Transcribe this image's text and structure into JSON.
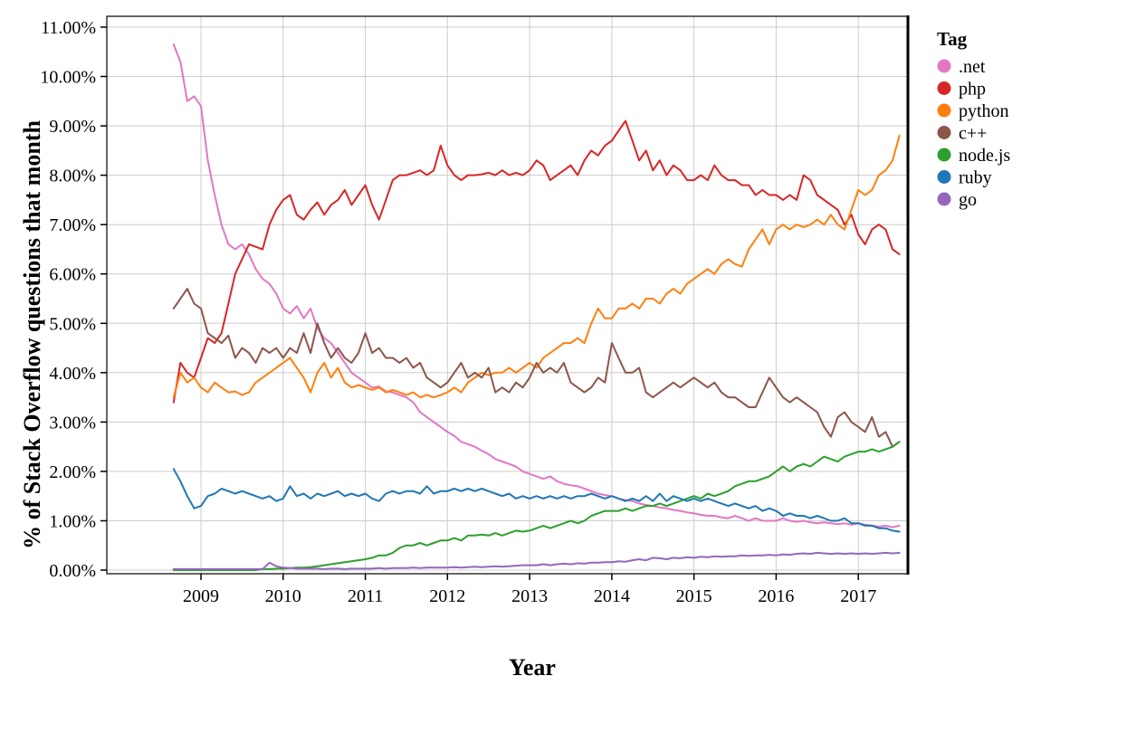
{
  "chart_data": {
    "type": "line",
    "title": "",
    "xlabel": "Year",
    "ylabel": "% of Stack Overflow questions that month",
    "legend_title": "Tag",
    "legend_position": "right",
    "grid": true,
    "grid_color": "#cccccc",
    "axis_color": "#000000",
    "xlim": [
      2007.854,
      2017.604
    ],
    "ylim": [
      -0.073,
      11.22
    ],
    "x_start": 2008.6667,
    "x_step": 0.0833333,
    "x_ticks": [
      {
        "value": 2009,
        "label": "2009"
      },
      {
        "value": 2010,
        "label": "2010"
      },
      {
        "value": 2011,
        "label": "2011"
      },
      {
        "value": 2012,
        "label": "2012"
      },
      {
        "value": 2013,
        "label": "2013"
      },
      {
        "value": 2014,
        "label": "2014"
      },
      {
        "value": 2015,
        "label": "2015"
      },
      {
        "value": 2016,
        "label": "2016"
      },
      {
        "value": 2017,
        "label": "2017"
      }
    ],
    "y_ticks": [
      {
        "value": 0,
        "label": "0.00%"
      },
      {
        "value": 1,
        "label": "1.00%"
      },
      {
        "value": 2,
        "label": "2.00%"
      },
      {
        "value": 3,
        "label": "3.00%"
      },
      {
        "value": 4,
        "label": "4.00%"
      },
      {
        "value": 5,
        "label": "5.00%"
      },
      {
        "value": 6,
        "label": "6.00%"
      },
      {
        "value": 7,
        "label": "7.00%"
      },
      {
        "value": 8,
        "label": "8.00%"
      },
      {
        "value": 9,
        "label": "9.00%"
      },
      {
        "value": 10,
        "label": "10.00%"
      },
      {
        "value": 11,
        "label": "11.00%"
      }
    ],
    "series": [
      {
        "name": ".net",
        "color": "#e377c2",
        "values": [
          10.65,
          10.3,
          9.5,
          9.6,
          9.4,
          8.3,
          7.6,
          7.0,
          6.6,
          6.5,
          6.6,
          6.4,
          6.1,
          5.9,
          5.8,
          5.6,
          5.3,
          5.2,
          5.35,
          5.1,
          5.3,
          4.9,
          4.7,
          4.6,
          4.4,
          4.2,
          4.0,
          3.9,
          3.8,
          3.7,
          3.72,
          3.62,
          3.6,
          3.55,
          3.5,
          3.4,
          3.2,
          3.1,
          3.0,
          2.9,
          2.8,
          2.72,
          2.6,
          2.55,
          2.5,
          2.42,
          2.35,
          2.25,
          2.2,
          2.15,
          2.1,
          2.0,
          1.95,
          1.9,
          1.85,
          1.9,
          1.8,
          1.75,
          1.72,
          1.7,
          1.65,
          1.6,
          1.55,
          1.52,
          1.5,
          1.45,
          1.42,
          1.4,
          1.35,
          1.32,
          1.3,
          1.27,
          1.25,
          1.22,
          1.2,
          1.17,
          1.15,
          1.12,
          1.1,
          1.1,
          1.07,
          1.05,
          1.1,
          1.05,
          1.0,
          1.05,
          1.0,
          1.0,
          1.0,
          1.05,
          1.0,
          0.98,
          1.0,
          0.97,
          0.95,
          0.97,
          0.95,
          0.93,
          0.95,
          0.92,
          0.95,
          0.92,
          0.9,
          0.88,
          0.9,
          0.87,
          0.9
        ]
      },
      {
        "name": "php",
        "color": "#d62728",
        "values": [
          3.4,
          4.2,
          4.0,
          3.9,
          4.3,
          4.7,
          4.6,
          4.8,
          5.4,
          6.0,
          6.3,
          6.6,
          6.55,
          6.5,
          7.0,
          7.3,
          7.5,
          7.6,
          7.2,
          7.1,
          7.3,
          7.45,
          7.2,
          7.4,
          7.5,
          7.7,
          7.4,
          7.6,
          7.8,
          7.4,
          7.1,
          7.5,
          7.9,
          8.0,
          8.0,
          8.05,
          8.1,
          8.0,
          8.1,
          8.6,
          8.2,
          8.0,
          7.9,
          8.0,
          8.0,
          8.02,
          8.05,
          8.0,
          8.1,
          8.0,
          8.05,
          8.0,
          8.1,
          8.3,
          8.2,
          7.9,
          8.0,
          8.1,
          8.2,
          8.0,
          8.3,
          8.5,
          8.4,
          8.6,
          8.7,
          8.9,
          9.1,
          8.7,
          8.3,
          8.5,
          8.1,
          8.3,
          8.0,
          8.2,
          8.1,
          7.9,
          7.9,
          8.0,
          7.9,
          8.2,
          8.0,
          7.9,
          7.9,
          7.8,
          7.8,
          7.6,
          7.7,
          7.6,
          7.6,
          7.5,
          7.6,
          7.5,
          8.0,
          7.9,
          7.6,
          7.5,
          7.4,
          7.3,
          7.0,
          7.2,
          6.8,
          6.6,
          6.9,
          7.0,
          6.9,
          6.5,
          6.4
        ]
      },
      {
        "name": "python",
        "color": "#ff7f0e",
        "values": [
          3.5,
          4.0,
          3.8,
          3.9,
          3.7,
          3.6,
          3.8,
          3.7,
          3.6,
          3.62,
          3.55,
          3.6,
          3.8,
          3.9,
          4.0,
          4.1,
          4.2,
          4.3,
          4.1,
          3.9,
          3.6,
          4.0,
          4.2,
          3.9,
          4.1,
          3.8,
          3.7,
          3.75,
          3.7,
          3.65,
          3.7,
          3.6,
          3.65,
          3.6,
          3.55,
          3.6,
          3.5,
          3.55,
          3.5,
          3.55,
          3.6,
          3.7,
          3.6,
          3.8,
          3.9,
          4.0,
          3.95,
          4.0,
          4.0,
          4.1,
          4.0,
          4.1,
          4.2,
          4.1,
          4.3,
          4.4,
          4.5,
          4.6,
          4.6,
          4.7,
          4.6,
          5.0,
          5.3,
          5.1,
          5.1,
          5.3,
          5.3,
          5.4,
          5.3,
          5.5,
          5.5,
          5.4,
          5.6,
          5.7,
          5.6,
          5.8,
          5.9,
          6.0,
          6.1,
          6.0,
          6.2,
          6.3,
          6.2,
          6.15,
          6.5,
          6.7,
          6.9,
          6.6,
          6.9,
          7.0,
          6.9,
          7.0,
          6.95,
          7.0,
          7.1,
          7.0,
          7.2,
          7.0,
          6.9,
          7.3,
          7.7,
          7.6,
          7.7,
          8.0,
          8.1,
          8.3,
          8.8
        ]
      },
      {
        "name": "c++",
        "color": "#8c564b",
        "values": [
          5.3,
          5.5,
          5.7,
          5.4,
          5.3,
          4.8,
          4.7,
          4.6,
          4.75,
          4.3,
          4.5,
          4.4,
          4.2,
          4.5,
          4.4,
          4.5,
          4.3,
          4.5,
          4.4,
          4.8,
          4.4,
          5.0,
          4.6,
          4.3,
          4.5,
          4.3,
          4.2,
          4.4,
          4.8,
          4.4,
          4.5,
          4.3,
          4.3,
          4.2,
          4.3,
          4.1,
          4.2,
          3.9,
          3.8,
          3.7,
          3.8,
          4.0,
          4.2,
          3.9,
          4.0,
          3.9,
          4.1,
          3.6,
          3.7,
          3.6,
          3.8,
          3.7,
          3.9,
          4.2,
          4.0,
          4.1,
          4.0,
          4.2,
          3.8,
          3.7,
          3.6,
          3.7,
          3.9,
          3.8,
          4.6,
          4.3,
          4.0,
          4.0,
          4.1,
          3.6,
          3.5,
          3.6,
          3.7,
          3.8,
          3.7,
          3.8,
          3.9,
          3.8,
          3.7,
          3.8,
          3.6,
          3.5,
          3.5,
          3.4,
          3.3,
          3.3,
          3.6,
          3.9,
          3.7,
          3.5,
          3.4,
          3.5,
          3.4,
          3.3,
          3.2,
          2.9,
          2.7,
          3.1,
          3.2,
          3.0,
          2.9,
          2.8,
          3.1,
          2.7,
          2.8,
          2.5,
          2.6
        ]
      },
      {
        "name": "node.js",
        "color": "#2ca02c",
        "values": [
          0,
          0,
          0,
          0,
          0,
          0,
          0,
          0,
          0,
          0,
          0,
          0,
          0,
          0.02,
          0.02,
          0.03,
          0.03,
          0.04,
          0.05,
          0.05,
          0.06,
          0.08,
          0.1,
          0.12,
          0.14,
          0.16,
          0.18,
          0.2,
          0.22,
          0.25,
          0.3,
          0.3,
          0.35,
          0.45,
          0.5,
          0.5,
          0.55,
          0.5,
          0.55,
          0.6,
          0.6,
          0.65,
          0.6,
          0.7,
          0.7,
          0.72,
          0.7,
          0.75,
          0.7,
          0.75,
          0.8,
          0.78,
          0.8,
          0.85,
          0.9,
          0.85,
          0.9,
          0.95,
          1.0,
          0.95,
          1.0,
          1.1,
          1.15,
          1.2,
          1.2,
          1.2,
          1.25,
          1.2,
          1.25,
          1.3,
          1.3,
          1.35,
          1.3,
          1.35,
          1.4,
          1.45,
          1.5,
          1.45,
          1.55,
          1.5,
          1.55,
          1.6,
          1.7,
          1.75,
          1.8,
          1.8,
          1.85,
          1.9,
          2.0,
          2.1,
          2.0,
          2.1,
          2.15,
          2.1,
          2.2,
          2.3,
          2.25,
          2.2,
          2.3,
          2.35,
          2.4,
          2.4,
          2.45,
          2.4,
          2.45,
          2.5,
          2.6
        ]
      },
      {
        "name": "ruby",
        "color": "#1f77b4",
        "values": [
          2.05,
          1.8,
          1.5,
          1.25,
          1.3,
          1.5,
          1.55,
          1.65,
          1.6,
          1.55,
          1.6,
          1.55,
          1.5,
          1.45,
          1.5,
          1.4,
          1.45,
          1.7,
          1.5,
          1.55,
          1.45,
          1.55,
          1.5,
          1.55,
          1.6,
          1.5,
          1.55,
          1.5,
          1.55,
          1.45,
          1.4,
          1.55,
          1.6,
          1.55,
          1.6,
          1.6,
          1.55,
          1.7,
          1.55,
          1.6,
          1.6,
          1.65,
          1.6,
          1.65,
          1.6,
          1.65,
          1.6,
          1.55,
          1.5,
          1.55,
          1.45,
          1.5,
          1.45,
          1.5,
          1.45,
          1.5,
          1.45,
          1.5,
          1.45,
          1.5,
          1.5,
          1.55,
          1.5,
          1.45,
          1.5,
          1.45,
          1.4,
          1.45,
          1.4,
          1.5,
          1.4,
          1.55,
          1.4,
          1.5,
          1.45,
          1.4,
          1.45,
          1.4,
          1.45,
          1.4,
          1.35,
          1.3,
          1.35,
          1.3,
          1.25,
          1.3,
          1.2,
          1.25,
          1.2,
          1.1,
          1.15,
          1.1,
          1.1,
          1.05,
          1.1,
          1.05,
          1.0,
          1.0,
          1.05,
          0.95,
          0.95,
          0.9,
          0.9,
          0.85,
          0.85,
          0.8,
          0.78
        ]
      },
      {
        "name": "go",
        "color": "#9467bd",
        "values": [
          0.02,
          0.02,
          0.02,
          0.02,
          0.02,
          0.02,
          0.02,
          0.02,
          0.02,
          0.02,
          0.02,
          0.02,
          0.02,
          0.02,
          0.15,
          0.08,
          0.05,
          0.04,
          0.03,
          0.03,
          0.03,
          0.03,
          0.02,
          0.03,
          0.03,
          0.02,
          0.03,
          0.03,
          0.03,
          0.03,
          0.04,
          0.03,
          0.04,
          0.04,
          0.04,
          0.05,
          0.04,
          0.05,
          0.05,
          0.05,
          0.05,
          0.06,
          0.05,
          0.06,
          0.07,
          0.06,
          0.07,
          0.08,
          0.07,
          0.08,
          0.09,
          0.1,
          0.1,
          0.1,
          0.12,
          0.1,
          0.12,
          0.13,
          0.12,
          0.14,
          0.13,
          0.15,
          0.15,
          0.16,
          0.16,
          0.18,
          0.17,
          0.2,
          0.22,
          0.2,
          0.25,
          0.24,
          0.22,
          0.25,
          0.24,
          0.26,
          0.25,
          0.27,
          0.26,
          0.28,
          0.27,
          0.28,
          0.28,
          0.3,
          0.29,
          0.3,
          0.3,
          0.31,
          0.3,
          0.32,
          0.31,
          0.33,
          0.34,
          0.33,
          0.35,
          0.34,
          0.33,
          0.34,
          0.33,
          0.34,
          0.33,
          0.34,
          0.33,
          0.34,
          0.35,
          0.34,
          0.35
        ]
      }
    ]
  }
}
